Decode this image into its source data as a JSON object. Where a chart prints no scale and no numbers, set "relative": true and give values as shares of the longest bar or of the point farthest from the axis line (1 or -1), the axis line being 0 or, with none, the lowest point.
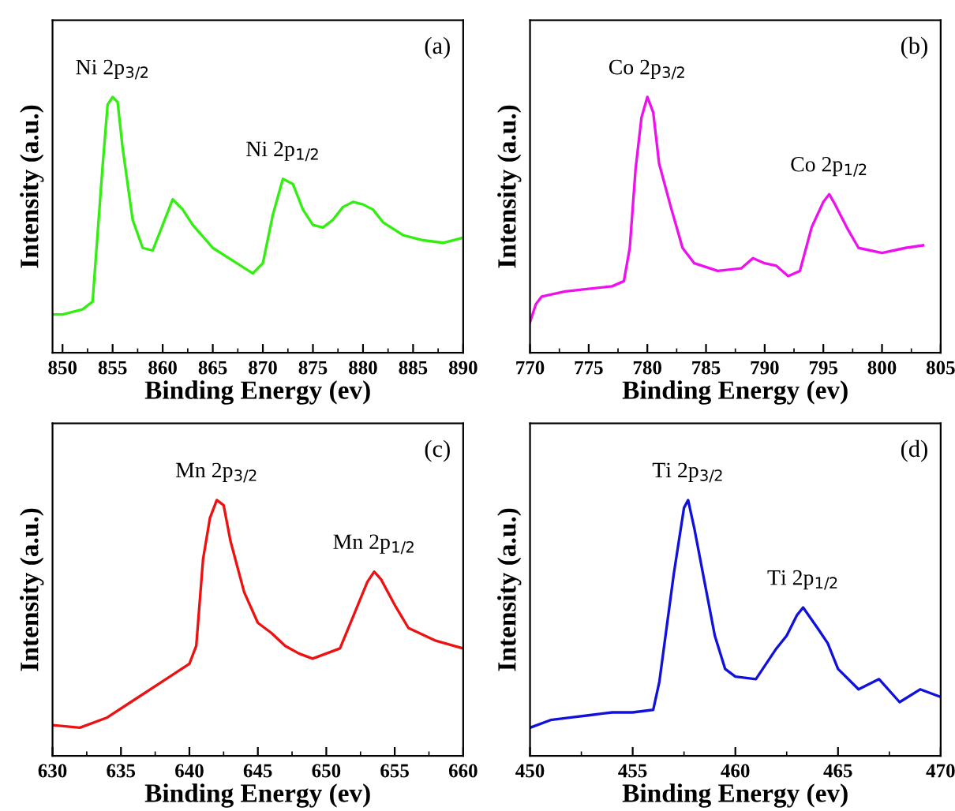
{
  "chart_data": [
    {
      "type": "line",
      "relative": true,
      "xlabel": "Binding Energy (ev)",
      "ylabel": "Intensity (a.u.)",
      "xlim": [
        849,
        890
      ],
      "xticks": [
        850,
        855,
        860,
        865,
        870,
        875,
        880,
        885,
        890
      ],
      "tick_labels": "x",
      "grid": false,
      "legend": false,
      "x": [
        849,
        850,
        852,
        853,
        854,
        854.5,
        855,
        855.5,
        856,
        857,
        858,
        859,
        860,
        861,
        862,
        863,
        865,
        867,
        869,
        870,
        871,
        872,
        873,
        874,
        875,
        876,
        877,
        878,
        879,
        880,
        881,
        882,
        884,
        886,
        888,
        890
      ],
      "series": [
        {
          "color": "#33ee11",
          "values": [
            0.15,
            0.15,
            0.17,
            0.2,
            0.73,
            0.97,
            1,
            0.98,
            0.8,
            0.52,
            0.41,
            0.4,
            0.5,
            0.6,
            0.56,
            0.5,
            0.41,
            0.36,
            0.31,
            0.35,
            0.54,
            0.68,
            0.66,
            0.56,
            0.5,
            0.49,
            0.52,
            0.57,
            0.59,
            0.58,
            0.56,
            0.51,
            0.46,
            0.44,
            0.43,
            0.45
          ]
        }
      ],
      "annotations": [
        {
          "text": "Ni 2p$_{3/2}$",
          "x": 855,
          "y": 1
        },
        {
          "text": "Ni 2p$_{1/2}$",
          "x": 872,
          "y": 0.68
        },
        "(a)"
      ]
    },
    {
      "type": "line",
      "relative": true,
      "xlabel": "Binding Energy (ev)",
      "ylabel": "Intensity (a.u.)",
      "xlim": [
        770,
        805
      ],
      "xticks": [
        770,
        775,
        780,
        785,
        790,
        795,
        800,
        805
      ],
      "tick_labels": "x",
      "grid": false,
      "legend": false,
      "x": [
        770,
        770.5,
        771,
        773,
        775,
        777,
        778,
        778.5,
        779,
        779.5,
        780,
        780.5,
        781,
        782,
        783,
        784,
        786,
        788,
        789,
        790,
        791,
        792,
        793,
        794,
        795,
        795.5,
        796,
        797,
        798,
        800,
        802,
        803.5
      ],
      "series": [
        {
          "color": "#ee11ee",
          "values": [
            0.12,
            0.19,
            0.22,
            0.24,
            0.25,
            0.26,
            0.28,
            0.41,
            0.72,
            0.92,
            1,
            0.94,
            0.74,
            0.57,
            0.41,
            0.35,
            0.32,
            0.33,
            0.37,
            0.35,
            0.34,
            0.3,
            0.32,
            0.49,
            0.59,
            0.62,
            0.58,
            0.49,
            0.41,
            0.39,
            0.41,
            0.42
          ]
        }
      ],
      "annotations": [
        {
          "text": "Co 2p$_{3/2}$",
          "x": 780,
          "y": 1
        },
        {
          "text": "Co 2p$_{1/2}$",
          "x": 795.5,
          "y": 0.62
        },
        "(b)"
      ]
    },
    {
      "type": "line",
      "relative": true,
      "xlabel": "Binding Energy (ev)",
      "ylabel": "Intensity (a.u.)",
      "xlim": [
        630,
        660
      ],
      "xticks": [
        630,
        635,
        640,
        645,
        650,
        655,
        660
      ],
      "tick_labels": "x",
      "grid": false,
      "legend": false,
      "x": [
        630,
        632,
        634,
        636,
        638,
        640,
        640.5,
        641,
        641.5,
        642,
        642.5,
        643,
        644,
        645,
        646,
        647,
        648,
        649,
        650,
        651,
        652,
        653,
        653.5,
        654,
        655,
        656,
        658,
        660
      ],
      "series": [
        {
          "color": "#ee1111",
          "values": [
            0.12,
            0.11,
            0.15,
            0.22,
            0.29,
            0.36,
            0.43,
            0.77,
            0.93,
            1,
            0.98,
            0.84,
            0.64,
            0.52,
            0.48,
            0.43,
            0.4,
            0.38,
            0.4,
            0.42,
            0.55,
            0.68,
            0.72,
            0.69,
            0.59,
            0.5,
            0.45,
            0.42
          ]
        }
      ],
      "annotations": [
        {
          "text": "Mn 2p$_{3/2}$",
          "x": 642,
          "y": 1
        },
        {
          "text": "Mn 2p$_{1/2}$",
          "x": 653.5,
          "y": 0.72
        },
        "(c)"
      ]
    },
    {
      "type": "line",
      "relative": true,
      "xlabel": "Binding Energy (ev)",
      "ylabel": "Intensity (a.u.)",
      "xlim": [
        450,
        470
      ],
      "xticks": [
        450,
        455,
        460,
        465,
        470
      ],
      "tick_labels": "x",
      "grid": false,
      "legend": false,
      "x": [
        450,
        451,
        452,
        453,
        454,
        455,
        456,
        456.3,
        457,
        457.5,
        457.7,
        458,
        458.5,
        459,
        459.5,
        460,
        461,
        462,
        462.5,
        463,
        463.3,
        464,
        464.5,
        465,
        466,
        467,
        468,
        469,
        470
      ],
      "series": [
        {
          "color": "#1111dd",
          "values": [
            0.11,
            0.14,
            0.15,
            0.16,
            0.17,
            0.17,
            0.18,
            0.29,
            0.71,
            0.97,
            1,
            0.89,
            0.68,
            0.47,
            0.34,
            0.31,
            0.3,
            0.42,
            0.47,
            0.55,
            0.58,
            0.5,
            0.44,
            0.34,
            0.26,
            0.3,
            0.21,
            0.26,
            0.23
          ]
        }
      ],
      "annotations": [
        {
          "text": "Ti 2p$_{3/2}$",
          "x": 457.7,
          "y": 1
        },
        {
          "text": "Ti 2p$_{1/2}$",
          "x": 463.3,
          "y": 0.58
        },
        "(d)"
      ]
    }
  ]
}
